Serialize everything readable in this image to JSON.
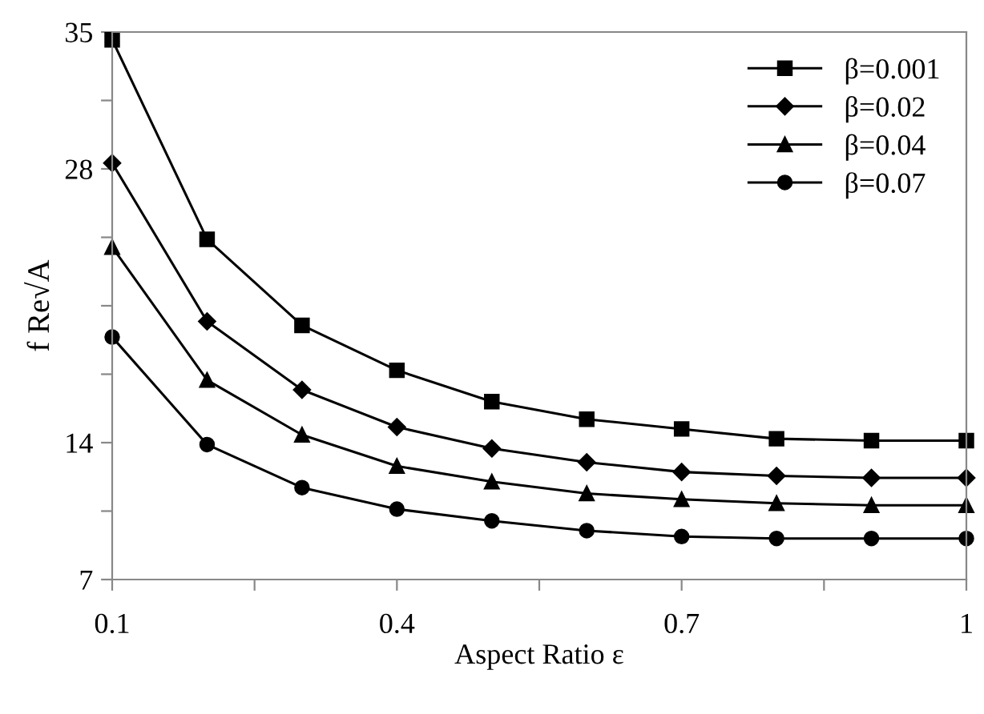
{
  "chart_data": {
    "type": "line",
    "xlabel": "Aspect Ratio ε",
    "ylabel": "f Re√A",
    "x": [
      0.1,
      0.2,
      0.3,
      0.4,
      0.5,
      0.6,
      0.7,
      0.8,
      0.9,
      1.0
    ],
    "xlim": [
      0.1,
      1.0
    ],
    "xticks": [
      0.1,
      {
        "value": 0.25,
        "label": null
      },
      0.4,
      {
        "value": 0.55,
        "label": null
      },
      0.7,
      {
        "value": 0.85,
        "label": null
      },
      {
        "value": 1.0,
        "label": "1"
      }
    ],
    "ylim": [
      7,
      35
    ],
    "yticks": [
      7,
      {
        "value": 10.5,
        "label": null
      },
      14,
      {
        "value": 17.5,
        "label": null
      },
      {
        "value": 21,
        "label": null
      },
      {
        "value": 24.5,
        "label": null
      },
      28,
      {
        "value": 31.5,
        "label": null
      },
      35
    ],
    "grid": false,
    "legend": "top right",
    "line_style": "solid",
    "series": [
      {
        "name": "β=0.001",
        "color": "#000000",
        "marker": "square",
        "values": [
          34.6,
          24.4,
          20.0,
          17.7,
          16.1,
          15.2,
          14.7,
          14.2,
          14.1,
          14.1
        ]
      },
      {
        "name": "β=0.02",
        "color": "#000000",
        "marker": "diamond",
        "values": [
          28.3,
          20.2,
          16.7,
          14.8,
          13.7,
          13.0,
          12.5,
          12.3,
          12.2,
          12.2
        ]
      },
      {
        "name": "β=0.04",
        "color": "#000000",
        "marker": "triangle",
        "values": [
          24.0,
          17.2,
          14.4,
          12.8,
          12.0,
          11.4,
          11.1,
          10.9,
          10.8,
          10.8
        ]
      },
      {
        "name": "β=0.07",
        "color": "#000000",
        "marker": "circle",
        "values": [
          19.4,
          13.9,
          11.7,
          10.6,
          10.0,
          9.5,
          9.2,
          9.1,
          9.1,
          9.1
        ]
      }
    ]
  }
}
